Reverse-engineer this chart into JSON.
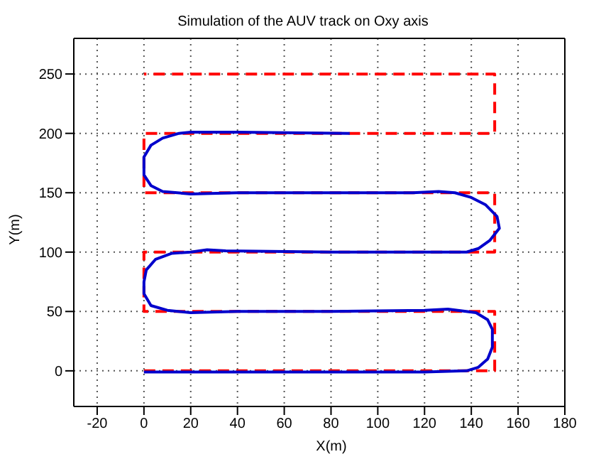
{
  "chart_data": {
    "type": "line",
    "title": "Simulation of the AUV track on Oxy axis",
    "xlabel": "X(m)",
    "ylabel": "Y(m)",
    "xlim": [
      -30,
      180
    ],
    "ylim": [
      -30,
      280
    ],
    "xticks": [
      -20,
      0,
      20,
      40,
      60,
      80,
      100,
      120,
      140,
      160,
      180
    ],
    "yticks": [
      0,
      50,
      100,
      150,
      200,
      250
    ],
    "grid": true,
    "marker": "none",
    "series": [
      {
        "color": "#ff0000",
        "line_style": "dashed",
        "x": [
          0,
          150,
          150,
          0,
          0,
          150,
          150,
          0,
          0,
          150,
          150,
          0
        ],
        "values": [
          0,
          0,
          50,
          50,
          100,
          100,
          150,
          150,
          200,
          200,
          250,
          250
        ]
      },
      {
        "color": "#0000cc",
        "line_style": "solid",
        "x": [
          0,
          40,
          80,
          120,
          138,
          143,
          147,
          149,
          149,
          147,
          142,
          130,
          120,
          80,
          40,
          20,
          10,
          3,
          0,
          0,
          1,
          5,
          12,
          20,
          27,
          35,
          80,
          120,
          138,
          143,
          148,
          152,
          151,
          146,
          140,
          133,
          126,
          115,
          80,
          40,
          20,
          8,
          3,
          0,
          0,
          3,
          8,
          15,
          20,
          40,
          88
        ],
        "values": [
          -1,
          -1,
          -1,
          -1,
          0,
          3,
          10,
          20,
          35,
          43,
          49,
          52,
          51,
          50,
          50,
          49,
          51,
          55,
          65,
          75,
          85,
          94,
          99,
          100,
          102,
          101,
          100,
          100,
          100,
          103,
          110,
          120,
          130,
          140,
          146,
          150,
          151,
          150,
          150,
          150,
          149,
          151,
          156,
          165,
          180,
          190,
          196,
          200,
          201,
          201,
          200
        ]
      }
    ]
  }
}
